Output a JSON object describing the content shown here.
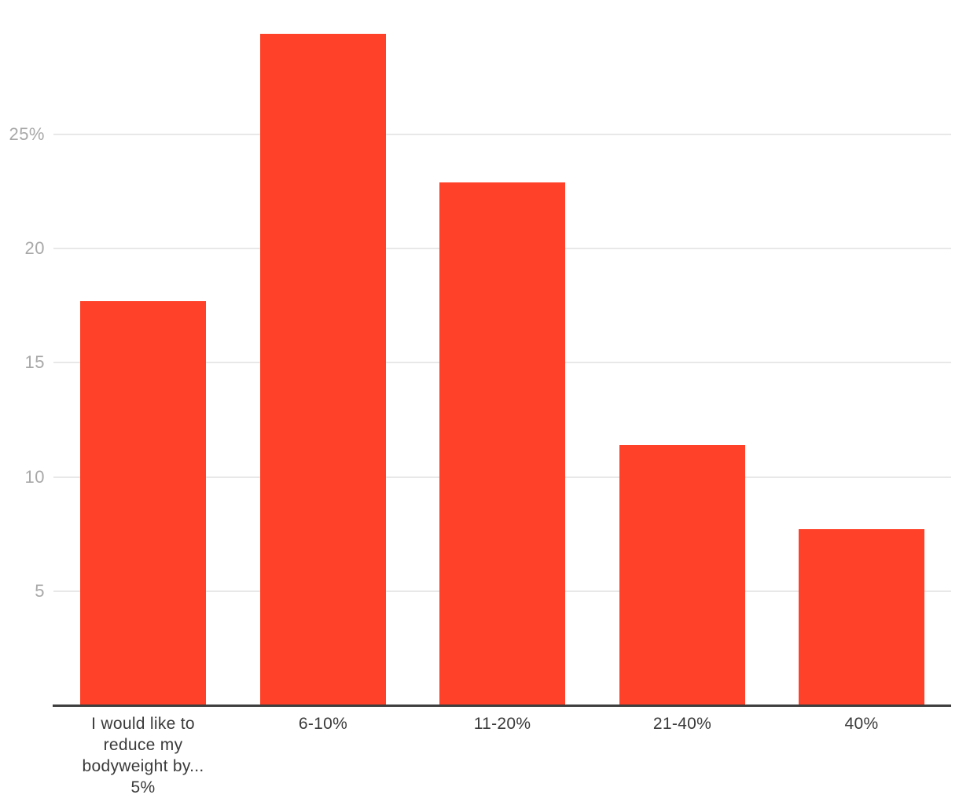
{
  "chart_data": {
    "type": "bar",
    "title": "",
    "xlabel": "",
    "ylabel": "",
    "categories": [
      "I would like to reduce my bodyweight by... 5%",
      "6-10%",
      "11-20%",
      "21-40%",
      "40%"
    ],
    "values": [
      17.7,
      29.4,
      22.9,
      11.4,
      7.7
    ],
    "yticks": [
      {
        "value": 5,
        "label": "5"
      },
      {
        "value": 10,
        "label": "10"
      },
      {
        "value": 15,
        "label": "15"
      },
      {
        "value": 20,
        "label": "20"
      },
      {
        "value": 25,
        "label": "25%"
      }
    ],
    "ylim": [
      0,
      31
    ],
    "grid": true,
    "legend": false,
    "colors": {
      "bar": "#FF4129",
      "gridline": "#E8E8E8",
      "axis": "#3E3E3E",
      "ytick_label": "#A8A8A8",
      "xtick_label": "#3A3A3A",
      "background": "#FFFFFF"
    }
  }
}
